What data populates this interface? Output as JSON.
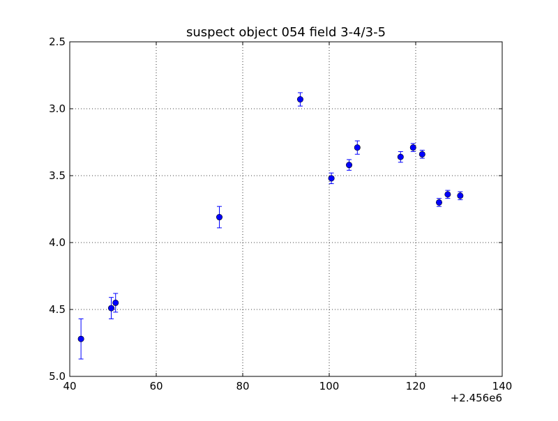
{
  "chart_data": {
    "type": "scatter",
    "title": "suspect object 054 field 3-4/3-5",
    "xlabel": "",
    "ylabel": "",
    "xlim": [
      40,
      140
    ],
    "ylim": [
      2.5,
      5.0
    ],
    "y_inverted": true,
    "x_offset_label": "+2.456e6",
    "x_ticks": [
      40,
      60,
      80,
      100,
      120,
      140
    ],
    "x_tick_labels": [
      "40",
      "60",
      "80",
      "100",
      "120",
      "140"
    ],
    "y_ticks": [
      2.5,
      3.0,
      3.5,
      4.0,
      4.5,
      5.0
    ],
    "y_tick_labels": [
      "2.5",
      "3.0",
      "3.5",
      "4.0",
      "4.5",
      "5.0"
    ],
    "grid": true,
    "marker_color": "#0000ff",
    "errorbar_color": "#0000ff",
    "series": [
      {
        "x": [
          42.6,
          49.6,
          50.6,
          74.6,
          93.3,
          100.5,
          104.6,
          106.5,
          116.5,
          119.4,
          121.5,
          125.4,
          127.4,
          130.3
        ],
        "y": [
          4.72,
          4.49,
          4.45,
          3.81,
          2.93,
          3.52,
          3.42,
          3.29,
          3.36,
          3.29,
          3.34,
          3.7,
          3.64,
          3.65
        ],
        "yerr": [
          0.15,
          0.08,
          0.07,
          0.08,
          0.05,
          0.04,
          0.04,
          0.05,
          0.04,
          0.03,
          0.03,
          0.03,
          0.03,
          0.03
        ]
      }
    ]
  }
}
